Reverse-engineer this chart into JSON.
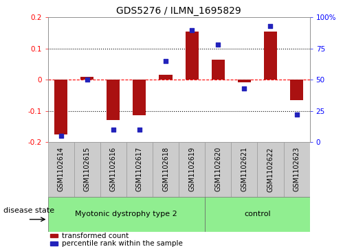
{
  "title": "GDS5276 / ILMN_1695829",
  "samples": [
    "GSM1102614",
    "GSM1102615",
    "GSM1102616",
    "GSM1102617",
    "GSM1102618",
    "GSM1102619",
    "GSM1102620",
    "GSM1102621",
    "GSM1102622",
    "GSM1102623"
  ],
  "red_values": [
    -0.175,
    0.01,
    -0.13,
    -0.115,
    0.015,
    0.155,
    0.065,
    -0.008,
    0.155,
    -0.065
  ],
  "blue_values": [
    5,
    50,
    10,
    10,
    65,
    90,
    78,
    43,
    93,
    22
  ],
  "ylim_left": [
    -0.2,
    0.2
  ],
  "ylim_right": [
    0,
    100
  ],
  "yticks_left": [
    -0.2,
    -0.1,
    0.0,
    0.1,
    0.2
  ],
  "yticks_right": [
    0,
    25,
    50,
    75,
    100
  ],
  "ytick_labels_left": [
    "-0.2",
    "-0.1",
    "0",
    "0.1",
    "0.2"
  ],
  "ytick_labels_right": [
    "0",
    "25",
    "50",
    "75",
    "100%"
  ],
  "group1_label": "Myotonic dystrophy type 2",
  "group2_label": "control",
  "group1_count": 6,
  "group2_count": 4,
  "disease_state_label": "disease state",
  "legend_red": "transformed count",
  "legend_blue": "percentile rank within the sample",
  "bar_color": "#aa1111",
  "dot_color": "#2222bb",
  "group_bg": "#90ee90",
  "sample_bg": "#cccccc",
  "bar_width": 0.5,
  "title_fontsize": 10,
  "tick_fontsize": 7.5,
  "label_fontsize": 7,
  "group_fontsize": 8,
  "legend_fontsize": 7.5
}
